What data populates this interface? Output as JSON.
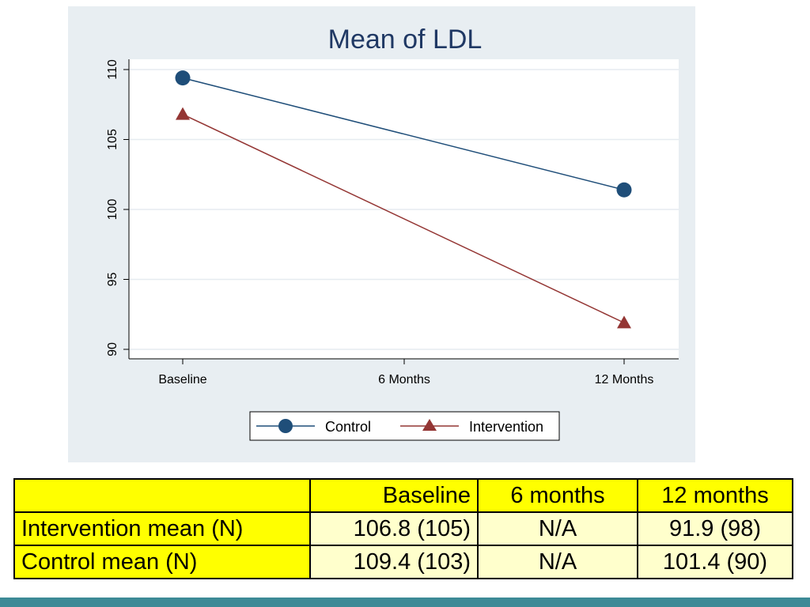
{
  "chart_data": {
    "type": "line",
    "title": "Mean of LDL",
    "xlabel": "",
    "ylabel": "",
    "categories": [
      "Baseline",
      "6 Months",
      "12 Months"
    ],
    "x_index": [
      0,
      1,
      2
    ],
    "ylim": [
      90,
      110
    ],
    "yticks": [
      90,
      95,
      100,
      105,
      110
    ],
    "grid": true,
    "legend_position": "bottom",
    "series": [
      {
        "name": "Control",
        "marker": "circle",
        "color": "#1f4e79",
        "x": [
          0,
          2
        ],
        "values": [
          109.4,
          101.4
        ]
      },
      {
        "name": "Intervention",
        "marker": "triangle",
        "color": "#943634",
        "x": [
          0,
          2
        ],
        "values": [
          106.8,
          91.9
        ]
      }
    ]
  },
  "table": {
    "header": [
      "",
      "Baseline",
      "6 months",
      "12 months"
    ],
    "rows": [
      {
        "label": "Intervention mean (N)",
        "baseline": "106.8 (105)",
        "six_months": "N/A",
        "twelve_months": "91.9 (98)"
      },
      {
        "label": "Control mean (N)",
        "baseline": "109.4 (103)",
        "six_months": "N/A",
        "twelve_months": "101.4 (90)"
      }
    ]
  },
  "colors": {
    "panel_background": "#e8eef2",
    "table_header": "#ffff00",
    "table_body": "#ffffcc",
    "footer_bar": "#3d8a96",
    "title": "#1f3864"
  }
}
